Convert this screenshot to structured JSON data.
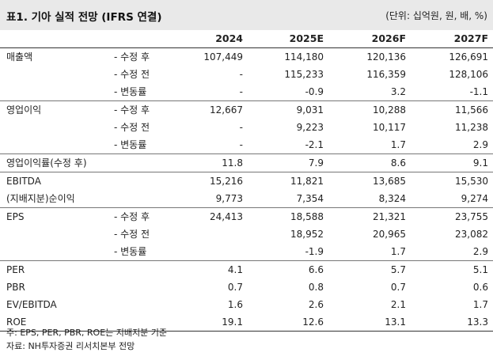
{
  "header": {
    "title": "표1. 기아 실적 전망 (IFRS 연결)",
    "unit": "(단위: 십억원, 원, 배, %)"
  },
  "columns": [
    "2024",
    "2025E",
    "2026F",
    "2027F"
  ],
  "rows": [
    {
      "label": "매출액",
      "sub": "- 수정 후",
      "values": [
        "107,449",
        "114,180",
        "120,136",
        "126,691"
      ],
      "sep": true
    },
    {
      "label": "",
      "sub": "- 수정 전",
      "values": [
        "-",
        "115,233",
        "116,359",
        "128,106"
      ]
    },
    {
      "label": "",
      "sub": "- 변동률",
      "values": [
        "-",
        "-0.9",
        "3.2",
        "-1.1"
      ]
    },
    {
      "label": "영업이익",
      "sub": "- 수정 후",
      "values": [
        "12,667",
        "9,031",
        "10,288",
        "11,566"
      ],
      "sep": true
    },
    {
      "label": "",
      "sub": "- 수정 전",
      "values": [
        "-",
        "9,223",
        "10,117",
        "11,238"
      ]
    },
    {
      "label": "",
      "sub": "- 변동률",
      "values": [
        "-",
        "-2.1",
        "1.7",
        "2.9"
      ]
    },
    {
      "label": "영업이익률(수정 후)",
      "sub": "",
      "values": [
        "11.8",
        "7.9",
        "8.6",
        "9.1"
      ],
      "sep": true
    },
    {
      "label": "EBITDA",
      "sub": "",
      "values": [
        "15,216",
        "11,821",
        "13,685",
        "15,530"
      ],
      "sep": true
    },
    {
      "label": "(지배지분)순이익",
      "sub": "",
      "values": [
        "9,773",
        "7,354",
        "8,324",
        "9,274"
      ]
    },
    {
      "label": "EPS",
      "sub": "- 수정 후",
      "values": [
        "24,413",
        "18,588",
        "21,321",
        "23,755"
      ],
      "sep": true
    },
    {
      "label": "",
      "sub": "- 수정 전",
      "values": [
        "",
        "18,952",
        "20,965",
        "23,082"
      ]
    },
    {
      "label": "",
      "sub": "- 변동률",
      "values": [
        "",
        "-1.9",
        "1.7",
        "2.9"
      ]
    },
    {
      "label": "PER",
      "sub": "",
      "values": [
        "4.1",
        "6.6",
        "5.7",
        "5.1"
      ],
      "sep": true
    },
    {
      "label": "PBR",
      "sub": "",
      "values": [
        "0.7",
        "0.8",
        "0.7",
        "0.6"
      ]
    },
    {
      "label": "EV/EBITDA",
      "sub": "",
      "values": [
        "1.6",
        "2.6",
        "2.1",
        "1.7"
      ]
    },
    {
      "label": "ROE",
      "sub": "",
      "values": [
        "19.1",
        "12.6",
        "13.1",
        "13.3"
      ],
      "last": true
    }
  ],
  "notes": [
    "주: EPS, PER, PBR, ROE는 지배지분 기준",
    "자료: NH투자증권 리서치본부 전망"
  ]
}
